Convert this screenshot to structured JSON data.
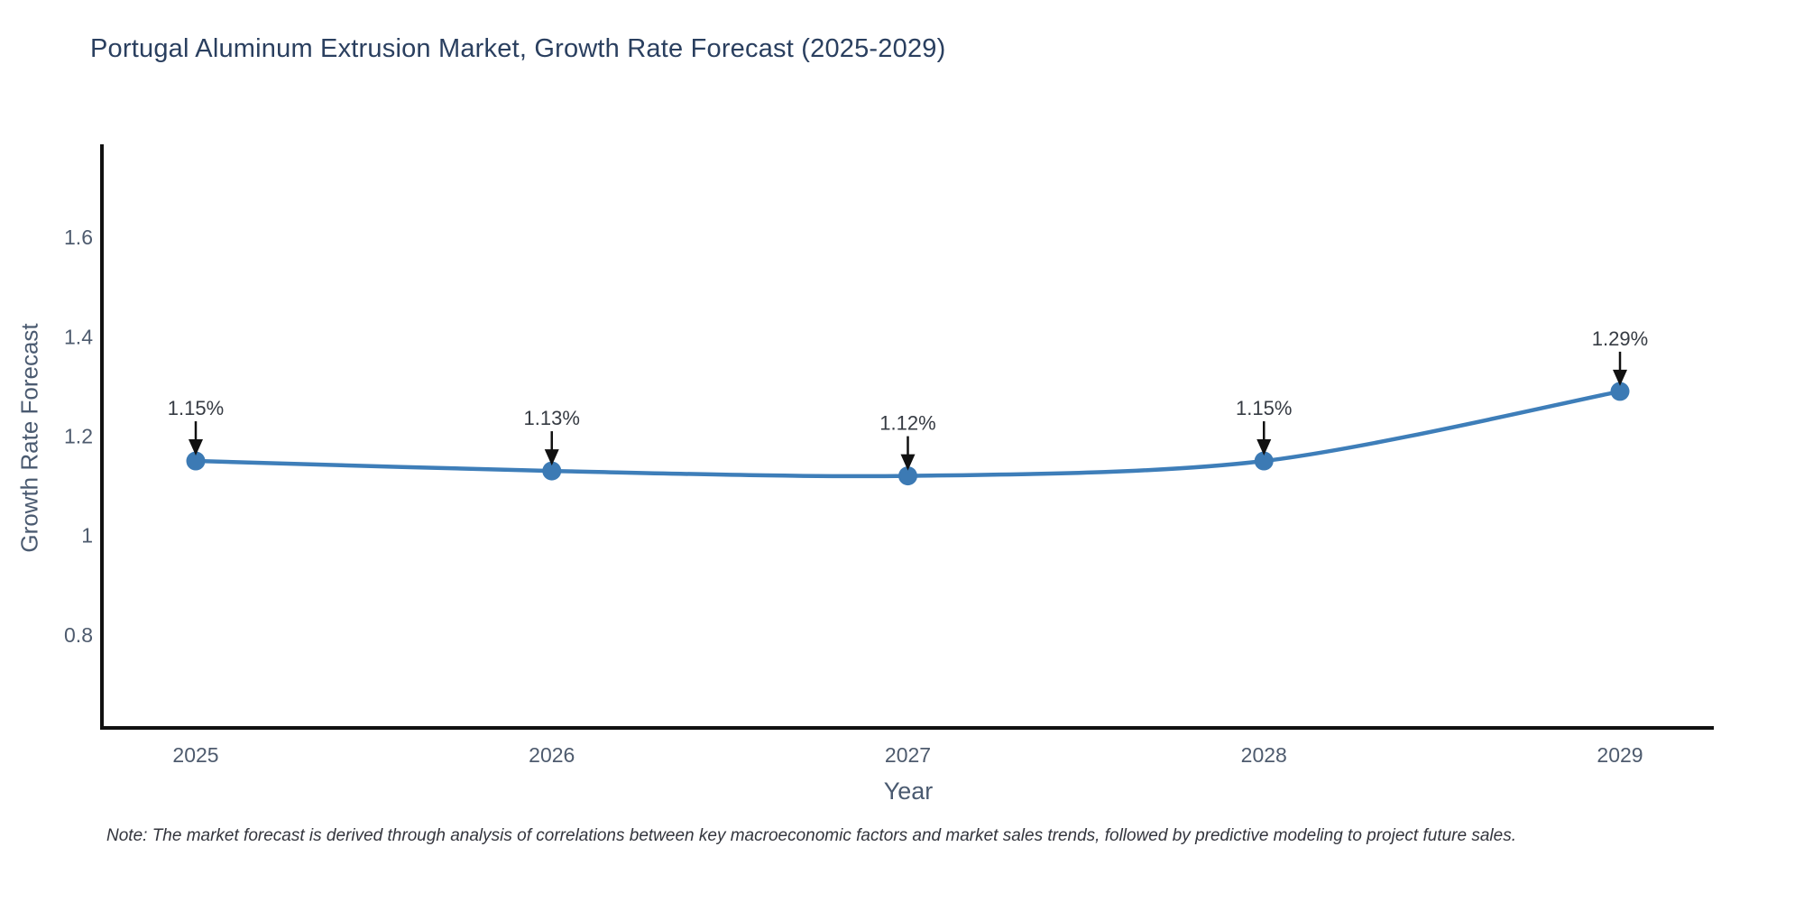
{
  "chart_data": {
    "type": "line",
    "title": "Portugal Aluminum Extrusion Market, Growth Rate Forecast (2025-2029)",
    "xlabel": "Year",
    "ylabel": "Growth Rate Forecast",
    "x": [
      2025,
      2026,
      2027,
      2028,
      2029
    ],
    "x_tick_labels": [
      "2025",
      "2026",
      "2027",
      "2028",
      "2029"
    ],
    "series": [
      {
        "name": "Growth Rate Forecast",
        "values": [
          1.15,
          1.13,
          1.12,
          1.15,
          1.29
        ],
        "point_labels": [
          "1.15%",
          "1.13%",
          "1.12%",
          "1.15%",
          "1.29%"
        ]
      }
    ],
    "y_ticks": [
      0.8,
      1.0,
      1.2,
      1.4,
      1.6
    ],
    "y_tick_labels": [
      "0.8",
      "1",
      "1.2",
      "1.4",
      "1.6"
    ],
    "ylim": [
      0.613,
      1.787
    ],
    "grid": false,
    "legend_position": "none",
    "line_color": "#3e7eb9",
    "marker_color": "#3c7ab4",
    "axis_color": "#111111",
    "tick_label_color": "#4e5b6e",
    "annotation_text_color": "#363b43",
    "annotation_arrow_color": "#111111",
    "title_color": "#2a3f5f"
  },
  "footnote": "Note: The market forecast is derived through analysis of correlations between key macroeconomic factors and market sales trends, followed by predictive modeling to project future sales."
}
